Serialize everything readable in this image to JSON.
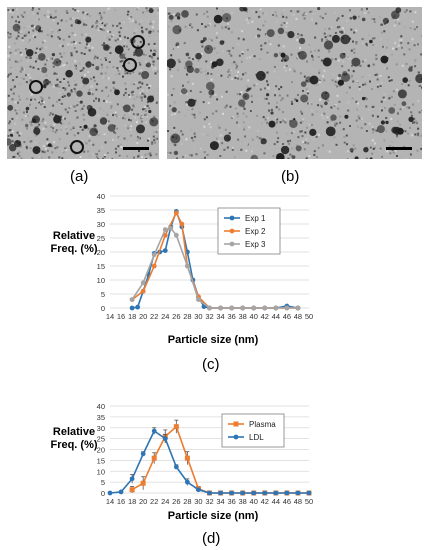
{
  "panels": {
    "a_label": "(a)",
    "b_label": "(b)",
    "c_label": "(c)",
    "d_label": "(d)"
  },
  "colors": {
    "blue": "#2e75b6",
    "orange": "#ed7d31",
    "gray": "#a5a5a5"
  },
  "chart_data": [
    {
      "type": "line",
      "ylabel": "Relative Freq. (%)",
      "xlabel": "Particle size (nm)",
      "xlim": [
        14,
        50
      ],
      "ylim": [
        0,
        40
      ],
      "xticks": [
        14,
        16,
        18,
        20,
        22,
        24,
        26,
        28,
        30,
        32,
        34,
        36,
        38,
        40,
        42,
        44,
        46,
        48,
        50
      ],
      "yticks": [
        0,
        5,
        10,
        15,
        20,
        25,
        30,
        35,
        40
      ],
      "legend": "top-right",
      "series": [
        {
          "name": "Exp 1",
          "color": "#2e75b6",
          "x": [
            18,
            19,
            20,
            21,
            22,
            23,
            24,
            25,
            26,
            27,
            28,
            29,
            30,
            31,
            32,
            34,
            36,
            38,
            40,
            42,
            44,
            46,
            48
          ],
          "y": [
            0,
            0.3,
            6,
            12,
            19.5,
            20,
            20.5,
            29,
            34.5,
            29,
            20,
            10,
            4,
            0.5,
            0,
            0,
            0,
            0,
            0,
            0,
            0,
            0.7,
            0
          ]
        },
        {
          "name": "Exp 2",
          "color": "#ed7d31",
          "x": [
            18,
            20,
            22,
            24,
            26,
            27,
            28,
            30,
            32,
            34,
            36,
            38,
            40,
            42,
            44,
            46,
            48
          ],
          "y": [
            3,
            6,
            15,
            26,
            34,
            30,
            15,
            4,
            0,
            0,
            0,
            0,
            0,
            0,
            0,
            0,
            0
          ]
        },
        {
          "name": "Exp 3",
          "color": "#a5a5a5",
          "x": [
            18,
            20,
            22,
            24,
            25,
            26,
            28,
            30,
            32,
            34,
            36,
            38,
            40,
            42,
            44,
            46,
            48
          ],
          "y": [
            3,
            9,
            19,
            28,
            28.5,
            26,
            15,
            3,
            0,
            0,
            0,
            0,
            0,
            0,
            0,
            0,
            0
          ]
        }
      ]
    },
    {
      "type": "line",
      "ylabel": "Relative Freq. (%)",
      "xlabel": "Particle size (nm)",
      "xlim": [
        14,
        50
      ],
      "ylim": [
        0,
        40
      ],
      "xticks": [
        14,
        16,
        18,
        20,
        22,
        24,
        26,
        28,
        30,
        32,
        34,
        36,
        38,
        40,
        42,
        44,
        46,
        48,
        50
      ],
      "yticks": [
        0,
        5,
        10,
        15,
        20,
        25,
        30,
        35,
        40
      ],
      "legend": "top-right",
      "series": [
        {
          "name": "Plasma",
          "color": "#ed7d31",
          "marker": "square",
          "x": [
            18,
            20,
            22,
            24,
            26,
            28,
            30,
            32,
            34,
            36,
            38,
            40,
            42,
            44,
            46,
            48,
            50
          ],
          "y": [
            1.5,
            4.5,
            16,
            26,
            30.5,
            16,
            2,
            0,
            0,
            0,
            0,
            0,
            0,
            0,
            0,
            0,
            0
          ],
          "err": [
            1.5,
            3,
            2.5,
            3,
            3,
            3,
            1,
            0,
            0,
            0,
            0,
            0,
            0,
            0,
            0,
            0,
            0
          ]
        },
        {
          "name": "LDL",
          "color": "#2e75b6",
          "marker": "circle",
          "x": [
            14,
            16,
            18,
            20,
            22,
            24,
            26,
            28,
            30,
            32,
            34,
            36,
            38,
            40,
            42,
            44,
            46,
            48,
            50
          ],
          "y": [
            0,
            0.5,
            6.5,
            18,
            28.5,
            25,
            12,
            5,
            1.5,
            0,
            0,
            0,
            0,
            0,
            0,
            0,
            0,
            0,
            0
          ],
          "err": [
            0,
            0.3,
            2,
            1,
            1.5,
            2,
            1,
            1.5,
            0.5,
            0,
            0,
            0,
            0,
            0,
            0,
            0,
            0,
            0,
            0
          ]
        }
      ]
    }
  ]
}
